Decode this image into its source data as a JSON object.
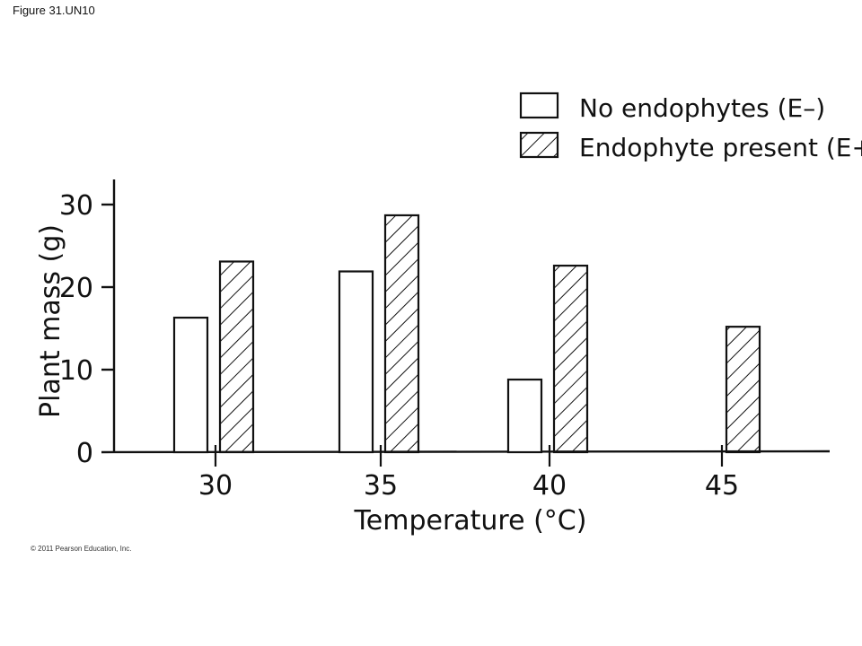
{
  "figure_label": "Figure 31.UN10",
  "copyright": "© 2011 Pearson Education, Inc.",
  "chart_data": {
    "type": "bar",
    "title": "",
    "xlabel": "Temperature (°C)",
    "ylabel": "Plant mass (g)",
    "categories": [
      "30",
      "35",
      "40",
      "45"
    ],
    "ylim": [
      0,
      30
    ],
    "yticks": [
      "0",
      "10",
      "20",
      "30"
    ],
    "grid": false,
    "legend_position": "top-right",
    "series": [
      {
        "name": "No endophytes (E–)",
        "pattern": "open",
        "values": [
          16.3,
          21.9,
          8.8,
          0
        ]
      },
      {
        "name": "Endophyte present (E+)",
        "pattern": "hatched",
        "values": [
          23.1,
          28.7,
          22.6,
          15.2
        ]
      }
    ]
  }
}
